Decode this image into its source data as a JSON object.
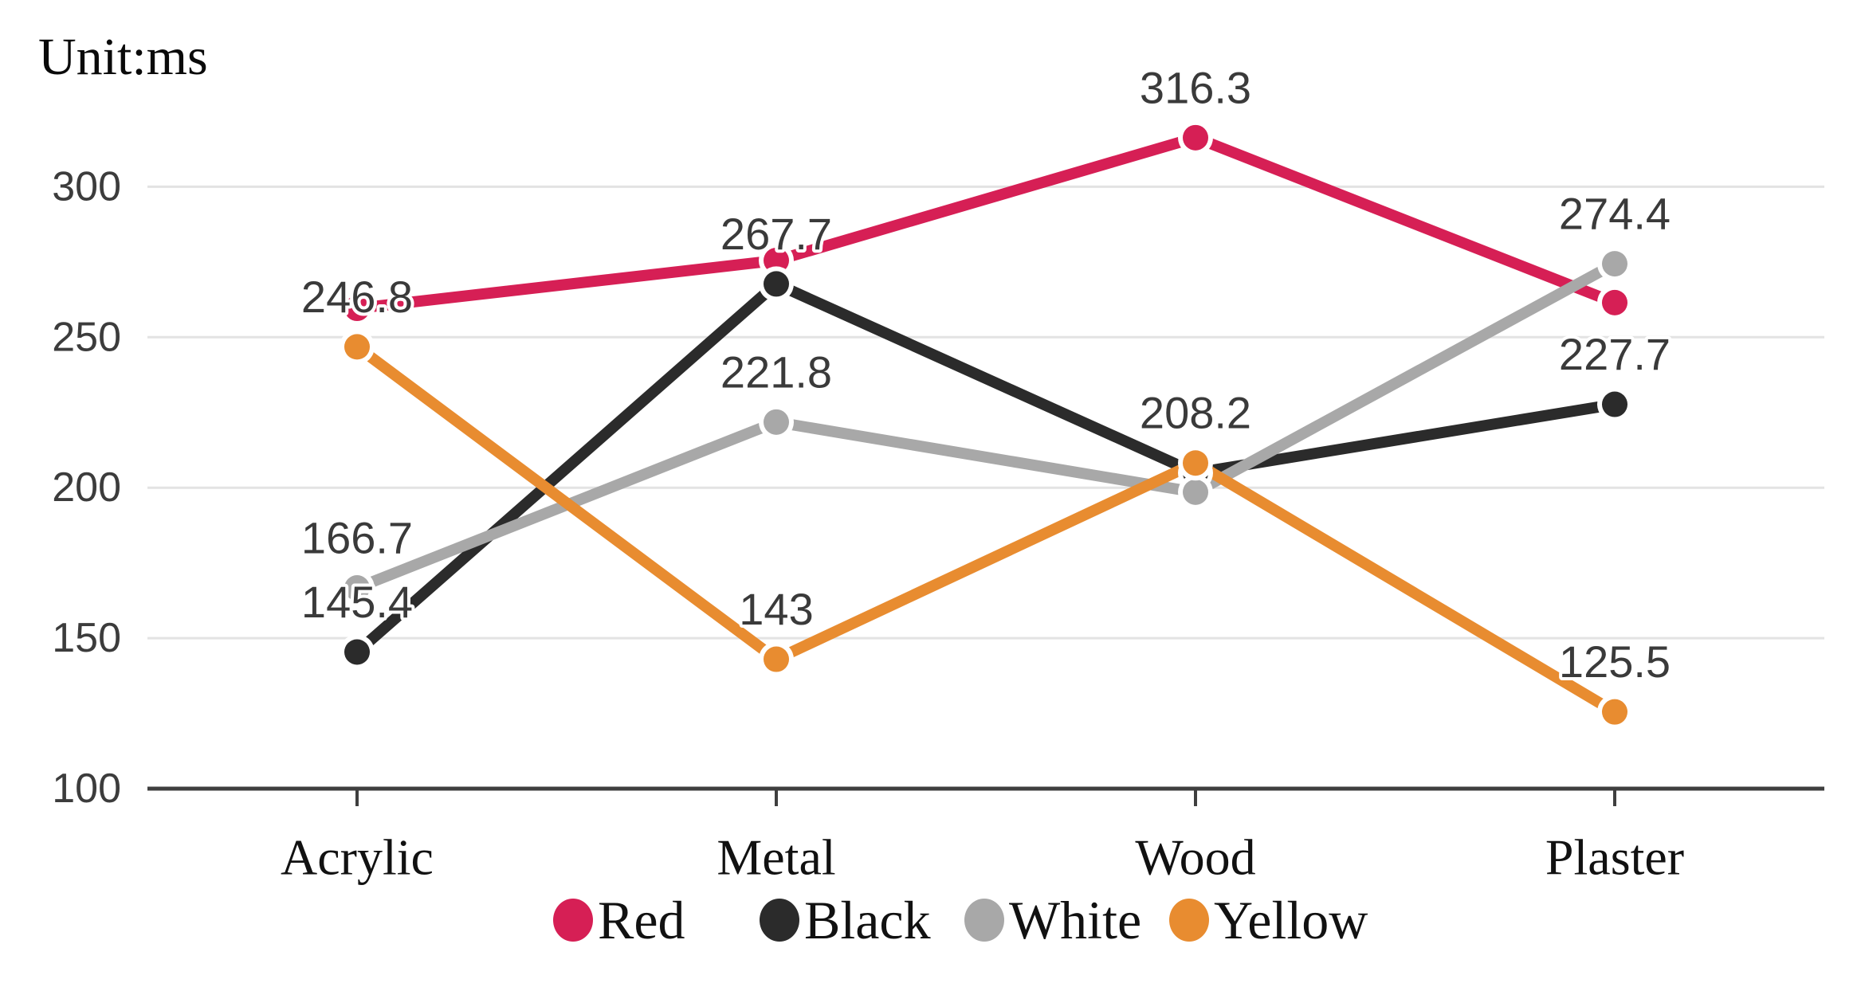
{
  "page": {
    "background": "#ffffff"
  },
  "unit_label": "Unit:ms",
  "chart_data": {
    "type": "line",
    "title": "Unit:ms",
    "categories": [
      "Acrylic",
      "Metal",
      "Wood",
      "Plaster"
    ],
    "series": [
      {
        "name": "Red",
        "color": "#d61f55",
        "values": [
          259.6,
          275.5,
          316.3,
          261.5
        ],
        "point_labels": [
          null,
          null,
          "316.3",
          null
        ]
      },
      {
        "name": "Black",
        "color": "#2b2b2b",
        "values": [
          145.4,
          267.7,
          204.9,
          227.7
        ],
        "point_labels": [
          "145.4",
          "267.7",
          null,
          "227.7"
        ]
      },
      {
        "name": "White",
        "color": "#a8a8a8",
        "values": [
          166.7,
          221.8,
          198.5,
          274.4
        ],
        "point_labels": [
          "166.7",
          "221.8",
          null,
          "274.4"
        ]
      },
      {
        "name": "Yellow",
        "color": "#e88c30",
        "values": [
          246.8,
          143,
          208.2,
          125.5
        ],
        "point_labels": [
          "246.8",
          "143",
          "208.2",
          "125.5"
        ]
      }
    ],
    "y_axis": {
      "min": 100,
      "max": 300,
      "tick_interval": 50,
      "ticks": [
        100,
        150,
        200,
        250,
        300
      ],
      "tick_labels": [
        "100",
        "150",
        "200",
        "250",
        "300"
      ]
    },
    "x_axis": {
      "tick_marks": true
    },
    "grid": true,
    "legend": {
      "position": "bottom",
      "entries": [
        "Red",
        "Black",
        "White",
        "Yellow"
      ]
    },
    "colors": {
      "gridline": "#e3e3e3",
      "axis_line": "#3f3f3f",
      "tick_text": "#3c3c3c",
      "point_label_text": "#3a3a3a",
      "category_text": "#111111"
    }
  }
}
